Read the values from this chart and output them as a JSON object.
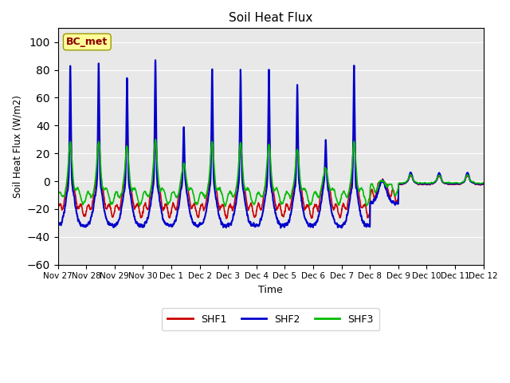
{
  "title": "Soil Heat Flux",
  "xlabel": "Time",
  "ylabel": "Soil Heat Flux (W/m2)",
  "ylim": [
    -60,
    110
  ],
  "yticks": [
    -60,
    -40,
    -20,
    0,
    20,
    40,
    60,
    80,
    100
  ],
  "line_colors": {
    "SHF1": "#cc0000",
    "SHF2": "#0000cc",
    "SHF3": "#00bb00"
  },
  "line_widths": {
    "SHF1": 1.2,
    "SHF2": 1.5,
    "SHF3": 1.2
  },
  "annotation_text": "BC_met",
  "bg_color": "#e8e8e8",
  "n_days": 15,
  "points_per_day": 288,
  "x_tick_labels": [
    "Nov 27",
    "Nov 28",
    "Nov 29",
    "Nov 30",
    "Dec 1",
    "Dec 2",
    "Dec 3",
    "Dec 4",
    "Dec 5",
    "Dec 6",
    "Dec 7",
    "Dec 8",
    "Dec 9",
    "Dec 10",
    "Dec 11",
    "Dec 12"
  ]
}
